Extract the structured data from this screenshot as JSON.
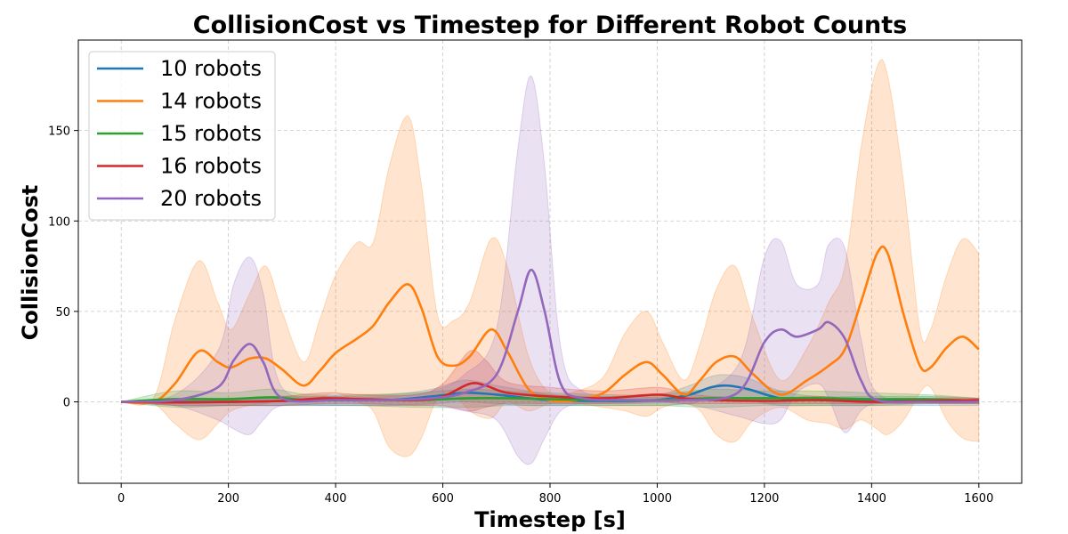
{
  "chart_data": {
    "type": "line",
    "title": "CollisionCost vs Timestep for Different Robot Counts",
    "xlabel": "Timestep [s]",
    "ylabel": "CollisionCost",
    "xlim": [
      -80,
      1680
    ],
    "ylim": [
      -45,
      200
    ],
    "xticks": [
      0,
      200,
      400,
      600,
      800,
      1000,
      1200,
      1400,
      1600
    ],
    "yticks": [
      0,
      50,
      100,
      150
    ],
    "grid": true,
    "grid_style": "dashed",
    "legend_position": "top-left",
    "series": [
      {
        "name": "10 robots",
        "color": "#1f77b4",
        "points": [
          [
            0,
            0
          ],
          [
            100,
            0
          ],
          [
            200,
            0
          ],
          [
            300,
            0.5
          ],
          [
            400,
            1
          ],
          [
            500,
            1
          ],
          [
            580,
            3
          ],
          [
            640,
            5
          ],
          [
            700,
            4
          ],
          [
            760,
            2
          ],
          [
            800,
            1
          ],
          [
            900,
            0.5
          ],
          [
            1000,
            1
          ],
          [
            1060,
            4
          ],
          [
            1100,
            8
          ],
          [
            1130,
            9
          ],
          [
            1170,
            7
          ],
          [
            1230,
            2
          ],
          [
            1300,
            1
          ],
          [
            1400,
            0.5
          ],
          [
            1500,
            0.5
          ],
          [
            1600,
            0.5
          ]
        ],
        "band": [
          [
            0,
            0,
            0
          ],
          [
            100,
            -2,
            2
          ],
          [
            200,
            -2,
            2
          ],
          [
            300,
            -2,
            3
          ],
          [
            400,
            -2,
            3
          ],
          [
            500,
            -2,
            4
          ],
          [
            580,
            -1,
            7
          ],
          [
            640,
            0,
            12
          ],
          [
            700,
            -1,
            9
          ],
          [
            760,
            -2,
            6
          ],
          [
            800,
            -2,
            4
          ],
          [
            900,
            -2,
            3
          ],
          [
            1000,
            -2,
            4
          ],
          [
            1060,
            -1,
            9
          ],
          [
            1100,
            2,
            14
          ],
          [
            1130,
            3,
            15
          ],
          [
            1170,
            1,
            13
          ],
          [
            1230,
            -2,
            6
          ],
          [
            1300,
            -2,
            3
          ],
          [
            1400,
            -2,
            3
          ],
          [
            1500,
            -2,
            3
          ],
          [
            1600,
            -2,
            2
          ]
        ]
      },
      {
        "name": "14 robots",
        "color": "#ff7f0e",
        "points": [
          [
            0,
            0
          ],
          [
            60,
            0
          ],
          [
            100,
            10
          ],
          [
            145,
            28
          ],
          [
            180,
            22
          ],
          [
            205,
            19
          ],
          [
            240,
            24
          ],
          [
            270,
            24
          ],
          [
            300,
            18
          ],
          [
            340,
            9
          ],
          [
            370,
            17
          ],
          [
            400,
            27
          ],
          [
            440,
            35
          ],
          [
            470,
            42
          ],
          [
            500,
            55
          ],
          [
            535,
            65
          ],
          [
            560,
            52
          ],
          [
            590,
            25
          ],
          [
            620,
            20
          ],
          [
            650,
            25
          ],
          [
            690,
            40
          ],
          [
            720,
            28
          ],
          [
            760,
            7
          ],
          [
            800,
            1
          ],
          [
            850,
            1
          ],
          [
            900,
            5
          ],
          [
            940,
            15
          ],
          [
            980,
            22
          ],
          [
            1010,
            15
          ],
          [
            1050,
            4
          ],
          [
            1080,
            12
          ],
          [
            1110,
            22
          ],
          [
            1145,
            25
          ],
          [
            1180,
            15
          ],
          [
            1230,
            4
          ],
          [
            1280,
            12
          ],
          [
            1320,
            20
          ],
          [
            1350,
            29
          ],
          [
            1380,
            55
          ],
          [
            1410,
            82
          ],
          [
            1430,
            82
          ],
          [
            1460,
            48
          ],
          [
            1490,
            20
          ],
          [
            1510,
            19
          ],
          [
            1540,
            30
          ],
          [
            1570,
            36
          ],
          [
            1600,
            29
          ]
        ],
        "band": [
          [
            0,
            0,
            0
          ],
          [
            60,
            -1,
            2
          ],
          [
            100,
            -12,
            45
          ],
          [
            145,
            -21,
            78
          ],
          [
            180,
            -12,
            55
          ],
          [
            205,
            -5,
            40
          ],
          [
            240,
            -2,
            60
          ],
          [
            270,
            -1,
            75
          ],
          [
            300,
            2,
            50
          ],
          [
            340,
            0,
            22
          ],
          [
            370,
            2,
            45
          ],
          [
            400,
            5,
            70
          ],
          [
            440,
            0,
            88
          ],
          [
            470,
            -5,
            88
          ],
          [
            500,
            -25,
            130
          ],
          [
            535,
            -30,
            158
          ],
          [
            560,
            -20,
            120
          ],
          [
            590,
            2,
            48
          ],
          [
            620,
            5,
            45
          ],
          [
            650,
            -5,
            55
          ],
          [
            690,
            -9,
            90
          ],
          [
            720,
            0,
            75
          ],
          [
            760,
            -5,
            25
          ],
          [
            800,
            -1,
            5
          ],
          [
            850,
            -1,
            6
          ],
          [
            900,
            -3,
            14
          ],
          [
            940,
            -5,
            38
          ],
          [
            980,
            -8,
            50
          ],
          [
            1010,
            -3,
            33
          ],
          [
            1050,
            -1,
            12
          ],
          [
            1080,
            -5,
            32
          ],
          [
            1110,
            -18,
            62
          ],
          [
            1145,
            -22,
            75
          ],
          [
            1180,
            -10,
            45
          ],
          [
            1230,
            -3,
            12
          ],
          [
            1280,
            -10,
            30
          ],
          [
            1320,
            -12,
            55
          ],
          [
            1350,
            -15,
            75
          ],
          [
            1380,
            -10,
            140
          ],
          [
            1410,
            -15,
            185
          ],
          [
            1430,
            -18,
            180
          ],
          [
            1460,
            -10,
            120
          ],
          [
            1490,
            5,
            40
          ],
          [
            1510,
            8,
            40
          ],
          [
            1540,
            -10,
            70
          ],
          [
            1570,
            -20,
            90
          ],
          [
            1600,
            -22,
            82
          ]
        ]
      },
      {
        "name": "15 robots",
        "color": "#2ca02c",
        "points": [
          [
            0,
            0
          ],
          [
            100,
            1.5
          ],
          [
            200,
            1.5
          ],
          [
            280,
            2.5
          ],
          [
            350,
            1
          ],
          [
            450,
            1
          ],
          [
            550,
            1
          ],
          [
            650,
            2
          ],
          [
            720,
            2
          ],
          [
            800,
            1.5
          ],
          [
            900,
            1
          ],
          [
            1000,
            1
          ],
          [
            1100,
            2
          ],
          [
            1200,
            2
          ],
          [
            1300,
            2
          ],
          [
            1400,
            1.5
          ],
          [
            1500,
            1.5
          ],
          [
            1600,
            0.5
          ]
        ],
        "band": [
          [
            0,
            0,
            0
          ],
          [
            100,
            -3,
            6
          ],
          [
            200,
            -2,
            5
          ],
          [
            280,
            -2,
            7
          ],
          [
            350,
            -2,
            4
          ],
          [
            450,
            -2,
            4
          ],
          [
            550,
            -3,
            5
          ],
          [
            650,
            -3,
            7
          ],
          [
            720,
            -2,
            6
          ],
          [
            800,
            -2,
            5
          ],
          [
            900,
            -2,
            4
          ],
          [
            1000,
            -2,
            4
          ],
          [
            1100,
            -3,
            7
          ],
          [
            1200,
            -2,
            6
          ],
          [
            1300,
            -2,
            6
          ],
          [
            1400,
            -2,
            5
          ],
          [
            1500,
            -1,
            4
          ],
          [
            1600,
            -1,
            2
          ]
        ]
      },
      {
        "name": "16 robots",
        "color": "#d62728",
        "points": [
          [
            0,
            0
          ],
          [
            100,
            -0.3
          ],
          [
            200,
            0
          ],
          [
            300,
            0.5
          ],
          [
            380,
            2
          ],
          [
            450,
            1.5
          ],
          [
            550,
            1
          ],
          [
            600,
            3
          ],
          [
            650,
            10
          ],
          [
            680,
            9
          ],
          [
            720,
            5
          ],
          [
            800,
            3
          ],
          [
            900,
            2
          ],
          [
            1000,
            4
          ],
          [
            1050,
            2
          ],
          [
            1100,
            1
          ],
          [
            1200,
            0.5
          ],
          [
            1300,
            1
          ],
          [
            1400,
            0
          ],
          [
            1500,
            0.5
          ],
          [
            1600,
            1
          ]
        ],
        "band": [
          [
            0,
            0,
            0
          ],
          [
            100,
            -2,
            1
          ],
          [
            200,
            -2,
            2
          ],
          [
            300,
            -2,
            3
          ],
          [
            380,
            -1,
            5
          ],
          [
            450,
            -1,
            4
          ],
          [
            550,
            -2,
            4
          ],
          [
            600,
            -2,
            10
          ],
          [
            650,
            -5,
            28
          ],
          [
            680,
            -3,
            23
          ],
          [
            720,
            -1,
            11
          ],
          [
            800,
            -1,
            8
          ],
          [
            900,
            -1,
            6
          ],
          [
            1000,
            0,
            8
          ],
          [
            1050,
            -1,
            5
          ],
          [
            1100,
            -1,
            3
          ],
          [
            1200,
            -1,
            2
          ],
          [
            1300,
            -1,
            3
          ],
          [
            1400,
            -1,
            1
          ],
          [
            1500,
            -1,
            2
          ],
          [
            1600,
            -1,
            2
          ]
        ]
      },
      {
        "name": "20 robots",
        "color": "#9467bd",
        "points": [
          [
            0,
            0
          ],
          [
            100,
            1
          ],
          [
            180,
            8
          ],
          [
            210,
            23
          ],
          [
            240,
            32
          ],
          [
            265,
            22
          ],
          [
            300,
            2
          ],
          [
            400,
            1
          ],
          [
            500,
            1
          ],
          [
            580,
            2
          ],
          [
            640,
            5
          ],
          [
            700,
            15
          ],
          [
            740,
            50
          ],
          [
            765,
            73
          ],
          [
            790,
            50
          ],
          [
            820,
            10
          ],
          [
            860,
            2
          ],
          [
            950,
            1
          ],
          [
            1050,
            1
          ],
          [
            1150,
            5
          ],
          [
            1200,
            33
          ],
          [
            1230,
            40
          ],
          [
            1260,
            36
          ],
          [
            1300,
            40
          ],
          [
            1320,
            44
          ],
          [
            1350,
            35
          ],
          [
            1380,
            12
          ],
          [
            1410,
            1
          ],
          [
            1500,
            0
          ],
          [
            1600,
            0
          ]
        ],
        "band": [
          [
            0,
            0,
            0
          ],
          [
            100,
            -2,
            4
          ],
          [
            180,
            -10,
            28
          ],
          [
            210,
            -15,
            65
          ],
          [
            240,
            -18,
            80
          ],
          [
            265,
            -10,
            60
          ],
          [
            300,
            -2,
            8
          ],
          [
            400,
            -2,
            3
          ],
          [
            500,
            -2,
            3
          ],
          [
            580,
            -2,
            6
          ],
          [
            640,
            -5,
            15
          ],
          [
            700,
            -10,
            40
          ],
          [
            740,
            -30,
            140
          ],
          [
            765,
            -34,
            180
          ],
          [
            790,
            -20,
            130
          ],
          [
            820,
            -5,
            30
          ],
          [
            860,
            -1,
            6
          ],
          [
            950,
            -1,
            3
          ],
          [
            1050,
            -1,
            4
          ],
          [
            1150,
            -8,
            20
          ],
          [
            1200,
            -12,
            80
          ],
          [
            1230,
            -10,
            89
          ],
          [
            1260,
            5,
            65
          ],
          [
            1300,
            10,
            65
          ],
          [
            1320,
            2,
            87
          ],
          [
            1350,
            -17,
            85
          ],
          [
            1380,
            -5,
            35
          ],
          [
            1410,
            -1,
            5
          ],
          [
            1500,
            0,
            0
          ],
          [
            1600,
            0,
            0
          ]
        ]
      }
    ]
  }
}
